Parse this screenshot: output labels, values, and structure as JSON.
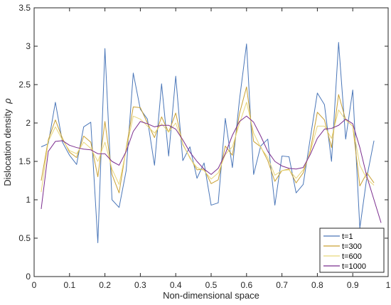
{
  "chart_data": {
    "type": "line",
    "title": "",
    "xlabel": "Non-dimensional space",
    "ylabel": "Dislocation  density",
    "ylabel_symbol": "ρ",
    "xlim": [
      0,
      1
    ],
    "ylim": [
      0,
      3.5
    ],
    "x_ticks": [
      "0",
      "0.1",
      "0.2",
      "0.3",
      "0.4",
      "0.5",
      "0.6",
      "0.7",
      "0.8",
      "0.9",
      "1"
    ],
    "y_ticks": [
      "0",
      "0.5",
      "1",
      "1.5",
      "2",
      "2.5",
      "3",
      "3.5"
    ],
    "grid": false,
    "legend_position": "bottom-right",
    "x": [
      0.02,
      0.04,
      0.06,
      0.08,
      0.1,
      0.12,
      0.14,
      0.16,
      0.18,
      0.2,
      0.22,
      0.24,
      0.26,
      0.28,
      0.3,
      0.32,
      0.34,
      0.36,
      0.38,
      0.4,
      0.42,
      0.44,
      0.46,
      0.48,
      0.5,
      0.52,
      0.54,
      0.56,
      0.58,
      0.6,
      0.62,
      0.64,
      0.66,
      0.68,
      0.7,
      0.72,
      0.74,
      0.76,
      0.78,
      0.8,
      0.82,
      0.84,
      0.86,
      0.88,
      0.9,
      0.92,
      0.94,
      0.96,
      0.98
    ],
    "series": [
      {
        "name": "t=1",
        "color": "#4a76b8",
        "values": [
          1.69,
          1.73,
          2.27,
          1.75,
          1.58,
          1.46,
          1.95,
          2.01,
          0.44,
          2.97,
          1.0,
          0.9,
          1.38,
          2.65,
          2.18,
          2.05,
          1.45,
          2.51,
          1.57,
          2.61,
          1.51,
          1.69,
          1.28,
          1.48,
          0.93,
          0.96,
          2.06,
          1.42,
          2.3,
          3.03,
          1.33,
          1.7,
          1.79,
          0.93,
          1.57,
          1.56,
          1.09,
          1.2,
          1.8,
          2.39,
          2.24,
          1.5,
          3.05,
          1.79,
          2.43,
          0.63,
          1.3,
          1.77,
          null
        ]
      },
      {
        "name": "t=300",
        "color": "#c9a033",
        "values": [
          1.25,
          1.78,
          2.04,
          1.8,
          1.62,
          1.55,
          1.83,
          1.75,
          1.3,
          2.02,
          1.33,
          1.09,
          1.67,
          2.21,
          2.2,
          2.0,
          1.81,
          2.08,
          1.88,
          2.13,
          1.72,
          1.55,
          1.39,
          1.4,
          1.21,
          1.26,
          1.7,
          1.58,
          2.12,
          2.47,
          1.76,
          1.69,
          1.51,
          1.24,
          1.38,
          1.4,
          1.22,
          1.35,
          1.64,
          2.14,
          2.04,
          1.68,
          2.37,
          2.04,
          1.96,
          1.18,
          1.35,
          1.22,
          null
        ]
      },
      {
        "name": "t=600",
        "color": "#e8d67a",
        "values": [
          1.1,
          1.76,
          1.95,
          1.78,
          1.64,
          1.6,
          1.75,
          1.67,
          1.5,
          1.75,
          1.4,
          1.2,
          1.65,
          2.09,
          2.05,
          1.96,
          1.87,
          1.99,
          1.88,
          2.0,
          1.73,
          1.54,
          1.42,
          1.38,
          1.27,
          1.35,
          1.59,
          1.69,
          1.99,
          2.27,
          1.87,
          1.68,
          1.55,
          1.32,
          1.38,
          1.39,
          1.28,
          1.39,
          1.62,
          1.96,
          1.96,
          1.8,
          2.17,
          2.04,
          1.96,
          1.45,
          1.27,
          1.19,
          null
        ]
      },
      {
        "name": "t=1000",
        "color": "#7b2d8e",
        "values": [
          0.88,
          1.63,
          1.76,
          1.77,
          1.71,
          1.68,
          1.66,
          1.65,
          1.6,
          1.6,
          1.5,
          1.45,
          1.63,
          1.89,
          2.02,
          1.99,
          1.95,
          1.97,
          1.97,
          1.92,
          1.78,
          1.62,
          1.5,
          1.4,
          1.33,
          1.41,
          1.6,
          1.84,
          2.02,
          2.09,
          2.01,
          1.83,
          1.63,
          1.5,
          1.44,
          1.41,
          1.4,
          1.42,
          1.59,
          1.8,
          1.92,
          1.93,
          1.97,
          2.05,
          1.99,
          1.68,
          1.3,
          1.0,
          0.7
        ]
      }
    ]
  }
}
